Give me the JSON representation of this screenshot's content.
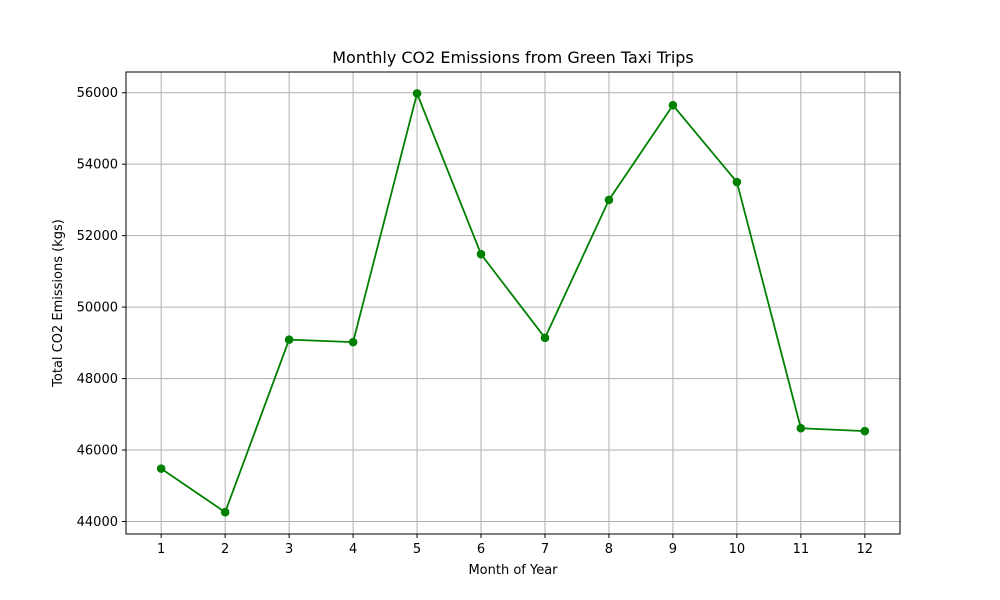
{
  "chart_data": {
    "type": "line",
    "title": "Monthly CO2 Emissions from Green Taxi Trips",
    "xlabel": "Month of Year",
    "ylabel": "Total CO2 Emissions (kgs)",
    "x": [
      1,
      2,
      3,
      4,
      5,
      6,
      7,
      8,
      9,
      10,
      11,
      12
    ],
    "xticks": [
      "1",
      "2",
      "3",
      "4",
      "5",
      "6",
      "7",
      "8",
      "9",
      "10",
      "11",
      "12"
    ],
    "yticks": [
      "44000",
      "46000",
      "48000",
      "50000",
      "52000",
      "54000",
      "56000"
    ],
    "ytick_values": [
      44000,
      46000,
      48000,
      50000,
      52000,
      54000,
      56000
    ],
    "xlim": [
      0.45,
      12.55
    ],
    "ylim": [
      43650,
      56580
    ],
    "grid": true,
    "series": [
      {
        "color": "#008000",
        "marker": "circle",
        "values": [
          45480,
          44260,
          49090,
          49020,
          55980,
          51480,
          49140,
          53000,
          55650,
          53500,
          46610,
          46530
        ]
      }
    ]
  }
}
